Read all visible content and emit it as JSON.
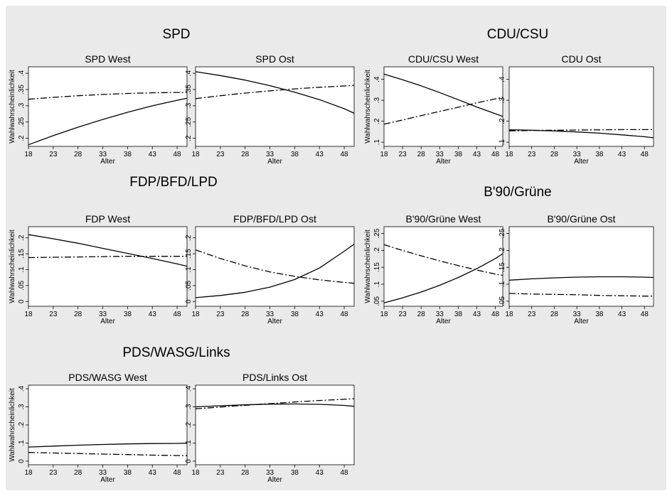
{
  "chart_data": [
    {
      "id": "spd-west",
      "type": "line",
      "group_title": "SPD",
      "title": "SPD West",
      "xlabel": "Alter",
      "ylabel": "Wahlwahrscheinlichkeit",
      "xlim": [
        18,
        50
      ],
      "ylim": [
        0.175,
        0.42
      ],
      "xticks": [
        18,
        23,
        28,
        33,
        38,
        43,
        48
      ],
      "yticks": [
        0.2,
        0.25,
        0.3,
        0.35,
        0.4
      ],
      "ytick_labels": [
        ".2",
        ".25",
        ".3",
        ".35",
        ".4"
      ],
      "series": [
        {
          "style": "solid",
          "x": [
            18,
            23,
            28,
            33,
            38,
            43,
            48,
            50
          ],
          "y": [
            0.18,
            0.208,
            0.234,
            0.258,
            0.28,
            0.3,
            0.317,
            0.323
          ]
        },
        {
          "style": "dashdot",
          "x": [
            18,
            23,
            28,
            33,
            38,
            43,
            48,
            50
          ],
          "y": [
            0.32,
            0.326,
            0.331,
            0.335,
            0.338,
            0.34,
            0.341,
            0.341
          ]
        }
      ]
    },
    {
      "id": "spd-ost",
      "type": "line",
      "group_title": "",
      "title": "SPD Ost",
      "xlabel": "Alter",
      "ylabel": "",
      "xlim": [
        18,
        50
      ],
      "ylim": [
        0.175,
        0.42
      ],
      "xticks": [
        18,
        23,
        28,
        33,
        38,
        43,
        48
      ],
      "yticks": [
        0.2,
        0.25,
        0.3,
        0.35,
        0.4
      ],
      "ytick_labels": [
        ".2",
        ".25",
        ".3",
        ".35",
        ".4"
      ],
      "series": [
        {
          "style": "solid",
          "x": [
            18,
            23,
            28,
            33,
            38,
            43,
            48,
            50
          ],
          "y": [
            0.405,
            0.393,
            0.379,
            0.362,
            0.342,
            0.319,
            0.291,
            0.277
          ]
        },
        {
          "style": "dashdot",
          "x": [
            18,
            23,
            28,
            33,
            38,
            43,
            48,
            50
          ],
          "y": [
            0.322,
            0.331,
            0.339,
            0.346,
            0.352,
            0.357,
            0.361,
            0.363
          ]
        }
      ]
    },
    {
      "id": "cdu-west",
      "type": "line",
      "group_title": "CDU/CSU",
      "title": "CDU/CSU West",
      "xlabel": "Alter",
      "ylabel": "Wahlwahrscheinlichkeit",
      "xlim": [
        18,
        50
      ],
      "ylim": [
        0.08,
        0.46
      ],
      "xticks": [
        18,
        23,
        28,
        33,
        38,
        43,
        48
      ],
      "yticks": [
        0.1,
        0.2,
        0.3,
        0.4
      ],
      "ytick_labels": [
        ".1",
        ".2",
        ".3",
        ".4"
      ],
      "series": [
        {
          "style": "solid",
          "x": [
            18,
            23,
            28,
            33,
            38,
            43,
            48,
            50
          ],
          "y": [
            0.425,
            0.398,
            0.369,
            0.337,
            0.303,
            0.268,
            0.236,
            0.223
          ]
        },
        {
          "style": "dashdot",
          "x": [
            18,
            23,
            28,
            33,
            38,
            43,
            48,
            50
          ],
          "y": [
            0.186,
            0.206,
            0.227,
            0.247,
            0.267,
            0.288,
            0.307,
            0.315
          ]
        }
      ]
    },
    {
      "id": "cdu-ost",
      "type": "line",
      "group_title": "",
      "title": "CDU Ost",
      "xlabel": "Alter",
      "ylabel": "",
      "xlim": [
        18,
        50
      ],
      "ylim": [
        0.08,
        0.46
      ],
      "xticks": [
        18,
        23,
        28,
        33,
        38,
        43,
        48
      ],
      "yticks": [
        0.1,
        0.2,
        0.3,
        0.4
      ],
      "ytick_labels": [
        ".1",
        ".2",
        ".3",
        ".4"
      ],
      "series": [
        {
          "style": "solid",
          "x": [
            18,
            23,
            28,
            33,
            38,
            43,
            48,
            50
          ],
          "y": [
            0.159,
            0.157,
            0.154,
            0.149,
            0.143,
            0.135,
            0.126,
            0.121
          ]
        },
        {
          "style": "dashdot",
          "x": [
            18,
            23,
            28,
            33,
            38,
            43,
            48,
            50
          ],
          "y": [
            0.154,
            0.156,
            0.157,
            0.158,
            0.159,
            0.16,
            0.16,
            0.16
          ]
        }
      ]
    },
    {
      "id": "fdp-west",
      "type": "line",
      "group_title": "FDP/BFD/LPD",
      "title": "FDP West",
      "xlabel": "Alter",
      "ylabel": "Wahlwahrscheinlichkeit",
      "xlim": [
        18,
        50
      ],
      "ylim": [
        -0.015,
        0.235
      ],
      "xticks": [
        18,
        23,
        28,
        33,
        38,
        43,
        48
      ],
      "yticks": [
        0,
        0.05,
        0.1,
        0.15,
        0.2
      ],
      "ytick_labels": [
        "0",
        ".05",
        ".1",
        ".15",
        ".2"
      ],
      "series": [
        {
          "style": "solid",
          "x": [
            18,
            23,
            28,
            33,
            38,
            43,
            48,
            50
          ],
          "y": [
            0.21,
            0.197,
            0.183,
            0.167,
            0.151,
            0.135,
            0.118,
            0.111
          ]
        },
        {
          "style": "dashdot",
          "x": [
            18,
            23,
            28,
            33,
            38,
            43,
            48,
            50
          ],
          "y": [
            0.138,
            0.139,
            0.14,
            0.141,
            0.142,
            0.142,
            0.142,
            0.142
          ]
        }
      ]
    },
    {
      "id": "fdp-ost",
      "type": "line",
      "group_title": "",
      "title": "FDP/BFD/LPD Ost",
      "xlabel": "Alter",
      "ylabel": "",
      "xlim": [
        18,
        50
      ],
      "ylim": [
        -0.015,
        0.235
      ],
      "xticks": [
        18,
        23,
        28,
        33,
        38,
        43,
        48
      ],
      "yticks": [
        0,
        0.05,
        0.1,
        0.15,
        0.2
      ],
      "ytick_labels": [
        "0",
        ".05",
        ".1",
        ".15",
        ".2"
      ],
      "series": [
        {
          "style": "solid",
          "x": [
            18,
            23,
            28,
            33,
            38,
            43,
            48,
            50
          ],
          "y": [
            0.012,
            0.019,
            0.029,
            0.045,
            0.069,
            0.105,
            0.158,
            0.18
          ]
        },
        {
          "style": "dashdot",
          "x": [
            18,
            23,
            28,
            33,
            38,
            43,
            48,
            50
          ],
          "y": [
            0.162,
            0.135,
            0.112,
            0.093,
            0.079,
            0.068,
            0.06,
            0.057
          ]
        }
      ]
    },
    {
      "id": "gruene-west",
      "type": "line",
      "group_title": "B'90/Grüne",
      "title": "B'90/Grüne West",
      "xlabel": "Alter",
      "ylabel": "Wahlwahrscheinlichkeit",
      "xlim": [
        18,
        50
      ],
      "ylim": [
        0.035,
        0.27
      ],
      "xticks": [
        18,
        23,
        28,
        33,
        38,
        43,
        48
      ],
      "yticks": [
        0.05,
        0.1,
        0.15,
        0.2,
        0.25
      ],
      "ytick_labels": [
        ".05",
        ".1",
        ".15",
        ".2",
        ".25"
      ],
      "series": [
        {
          "style": "solid",
          "x": [
            18,
            23,
            28,
            33,
            38,
            43,
            48,
            50
          ],
          "y": [
            0.045,
            0.06,
            0.077,
            0.097,
            0.12,
            0.146,
            0.176,
            0.19
          ]
        },
        {
          "style": "dashdot",
          "x": [
            18,
            23,
            28,
            33,
            38,
            43,
            48,
            50
          ],
          "y": [
            0.217,
            0.2,
            0.184,
            0.169,
            0.155,
            0.142,
            0.13,
            0.126
          ]
        }
      ]
    },
    {
      "id": "gruene-ost",
      "type": "line",
      "group_title": "",
      "title": "B'90/Grüne Ost",
      "xlabel": "Alter",
      "ylabel": "",
      "xlim": [
        18,
        50
      ],
      "ylim": [
        0.035,
        0.27
      ],
      "xticks": [
        18,
        23,
        28,
        33,
        38,
        43,
        48
      ],
      "yticks": [
        0.05,
        0.1,
        0.15,
        0.2,
        0.25
      ],
      "ytick_labels": [
        ".05",
        ".1",
        ".15",
        ".2",
        ".25"
      ],
      "series": [
        {
          "style": "solid",
          "x": [
            18,
            23,
            28,
            33,
            38,
            43,
            48,
            50
          ],
          "y": [
            0.112,
            0.116,
            0.119,
            0.121,
            0.122,
            0.122,
            0.121,
            0.12
          ]
        },
        {
          "style": "dashdot",
          "x": [
            18,
            23,
            28,
            33,
            38,
            43,
            48,
            50
          ],
          "y": [
            0.073,
            0.071,
            0.07,
            0.069,
            0.067,
            0.066,
            0.065,
            0.065
          ]
        }
      ]
    },
    {
      "id": "pds-west",
      "type": "line",
      "group_title": "PDS/WASG/Links",
      "title": "PDS/WASG West",
      "xlabel": "Alter",
      "ylabel": "Wahlwahrscheinlichkeit",
      "xlim": [
        18,
        50
      ],
      "ylim": [
        -0.02,
        0.42
      ],
      "xticks": [
        18,
        23,
        28,
        33,
        38,
        43,
        48
      ],
      "yticks": [
        0,
        0.1,
        0.2,
        0.3,
        0.4
      ],
      "ytick_labels": [
        "0",
        ".1",
        ".2",
        ".3",
        ".4"
      ],
      "series": [
        {
          "style": "solid",
          "x": [
            18,
            23,
            28,
            33,
            38,
            43,
            48,
            50
          ],
          "y": [
            0.078,
            0.083,
            0.088,
            0.092,
            0.095,
            0.097,
            0.098,
            0.099
          ]
        },
        {
          "style": "dashdot",
          "x": [
            18,
            23,
            28,
            33,
            38,
            43,
            48,
            50
          ],
          "y": [
            0.048,
            0.045,
            0.042,
            0.039,
            0.036,
            0.033,
            0.031,
            0.03
          ]
        }
      ]
    },
    {
      "id": "pds-ost",
      "type": "line",
      "group_title": "",
      "title": "PDS/Links Ost",
      "xlabel": "Alter",
      "ylabel": "",
      "xlim": [
        18,
        50
      ],
      "ylim": [
        -0.02,
        0.42
      ],
      "xticks": [
        18,
        23,
        28,
        33,
        38,
        43,
        48
      ],
      "yticks": [
        0,
        0.1,
        0.2,
        0.3,
        0.4
      ],
      "ytick_labels": [
        "0",
        ".1",
        ".2",
        ".3",
        ".4"
      ],
      "series": [
        {
          "style": "solid",
          "x": [
            18,
            23,
            28,
            33,
            38,
            43,
            48,
            50
          ],
          "y": [
            0.3,
            0.306,
            0.311,
            0.315,
            0.316,
            0.314,
            0.308,
            0.303
          ]
        },
        {
          "style": "dashdot",
          "x": [
            18,
            23,
            28,
            33,
            38,
            43,
            48,
            50
          ],
          "y": [
            0.289,
            0.299,
            0.309,
            0.318,
            0.327,
            0.335,
            0.342,
            0.345
          ]
        }
      ]
    }
  ]
}
